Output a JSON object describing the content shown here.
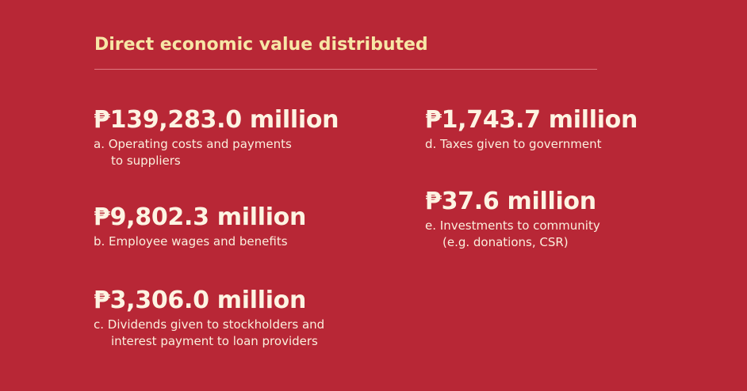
{
  "title": "Direct economic value distributed",
  "colors": {
    "background": "#B82736",
    "title": "#F7E6A6",
    "text": "#FDF3E2",
    "divider": "#DE7880"
  },
  "items": [
    {
      "amount": "₱139,283.0 million",
      "label_line1": "a. Operating costs and payments",
      "label_line2": "to suppliers"
    },
    {
      "amount": "₱9,802.3 million",
      "label_line1": "b. Employee wages and benefits",
      "label_line2": ""
    },
    {
      "amount": "₱3,306.0 million",
      "label_line1": "c. Dividends given to stockholders and",
      "label_line2": "interest payment to loan providers"
    },
    {
      "amount": "₱1,743.7 million",
      "label_line1": "d. Taxes given to government",
      "label_line2": ""
    },
    {
      "amount": "₱37.6 million",
      "label_line1": "e. Investments to community",
      "label_line2": "(e.g. donations, CSR)"
    }
  ]
}
